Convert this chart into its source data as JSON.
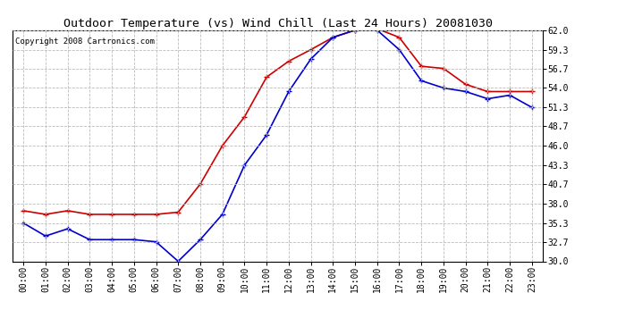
{
  "title": "Outdoor Temperature (vs) Wind Chill (Last 24 Hours) 20081030",
  "copyright": "Copyright 2008 Cartronics.com",
  "hours": [
    "00:00",
    "01:00",
    "02:00",
    "03:00",
    "04:00",
    "05:00",
    "06:00",
    "07:00",
    "08:00",
    "09:00",
    "10:00",
    "11:00",
    "12:00",
    "13:00",
    "14:00",
    "15:00",
    "16:00",
    "17:00",
    "18:00",
    "19:00",
    "20:00",
    "21:00",
    "22:00",
    "23:00"
  ],
  "temp": [
    37.0,
    36.5,
    37.0,
    36.5,
    36.5,
    36.5,
    36.5,
    36.8,
    40.7,
    46.0,
    50.0,
    55.5,
    57.7,
    59.3,
    61.0,
    62.0,
    62.2,
    61.0,
    57.0,
    56.7,
    54.5,
    53.5,
    53.5,
    53.5
  ],
  "wind_chill": [
    35.3,
    33.5,
    34.5,
    33.0,
    33.0,
    33.0,
    32.7,
    30.0,
    33.0,
    36.5,
    43.3,
    47.5,
    53.5,
    58.0,
    61.0,
    62.0,
    62.0,
    59.3,
    55.0,
    54.0,
    53.5,
    52.5,
    53.0,
    51.3
  ],
  "temp_color": "#cc0000",
  "wind_chill_color": "#0000cc",
  "ylim": [
    30.0,
    62.0
  ],
  "yticks": [
    30.0,
    32.7,
    35.3,
    38.0,
    40.7,
    43.3,
    46.0,
    48.7,
    51.3,
    54.0,
    56.7,
    59.3,
    62.0
  ],
  "bg_color": "#ffffff",
  "grid_color": "#bbbbbb",
  "marker": "+",
  "markersize": 5,
  "linewidth": 1.2,
  "title_fontsize": 9.5,
  "tick_fontsize": 7,
  "copyright_fontsize": 6.5
}
